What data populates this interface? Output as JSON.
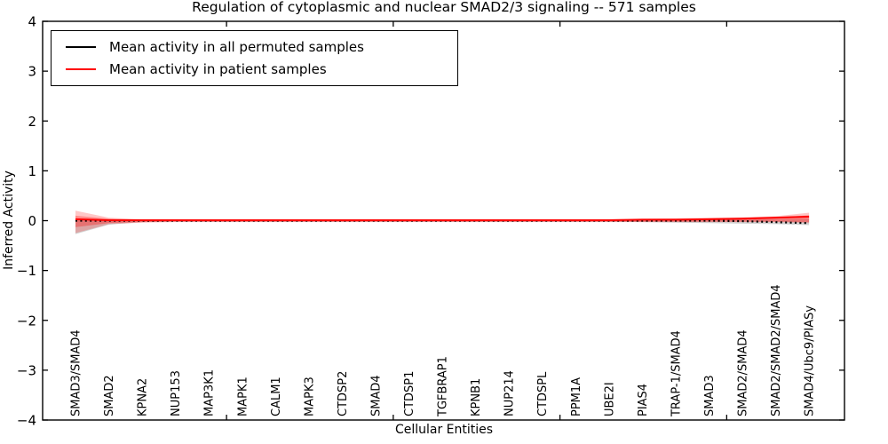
{
  "chart_data": {
    "type": "line",
    "title": "Regulation of cytoplasmic and nuclear SMAD2/3 signaling -- 571 samples",
    "xlabel": "Cellular Entities",
    "ylabel": "Inferred Activity",
    "ylim": [
      -4,
      4
    ],
    "yticks": [
      4,
      3,
      2,
      1,
      0,
      -1,
      -2,
      -3,
      -4
    ],
    "grid": false,
    "legend_position": "upper left",
    "categories": [
      "SMAD3/SMAD4",
      "SMAD2",
      "KPNA2",
      "NUP153",
      "MAP3K1",
      "MAPK1",
      "CALM1",
      "MAPK3",
      "CTDSP2",
      "SMAD4",
      "CTDSP1",
      "TGFBRAP1",
      "KPNB1",
      "NUP214",
      "CTDSPL",
      "PPM1A",
      "UBE2I",
      "PIAS4",
      "TRAP-1/SMAD4",
      "SMAD3",
      "SMAD2/SMAD4",
      "SMAD2/SMAD2/SMAD4",
      "SMAD4/Ubc9/PIASy"
    ],
    "series": [
      {
        "name": "Mean activity in all permuted samples",
        "color": "#000000",
        "linestyle": "dotted",
        "values": [
          0,
          0,
          0,
          0,
          0,
          0,
          0,
          0,
          0,
          0,
          0,
          0,
          0,
          0,
          0,
          0,
          0,
          0,
          0,
          0,
          -0.01,
          -0.03,
          -0.05
        ]
      },
      {
        "name": "Mean activity in patient samples",
        "color": "#ff0000",
        "linestyle": "solid",
        "values": [
          0.03,
          0.01,
          0.01,
          0.01,
          0.01,
          0.01,
          0.01,
          0.01,
          0.01,
          0.01,
          0.01,
          0.01,
          0.01,
          0.01,
          0.01,
          0.01,
          0.01,
          0.02,
          0.02,
          0.03,
          0.04,
          0.06,
          0.08
        ]
      }
    ],
    "bands": [
      {
        "name": "permuted-std-band",
        "color": "#8a8a8a",
        "opacity": 0.38,
        "upper": [
          0.03,
          0.02,
          0.02,
          0.02,
          0.02,
          0.02,
          0.02,
          0.02,
          0.02,
          0.02,
          0.02,
          0.02,
          0.02,
          0.02,
          0.02,
          0.02,
          0.02,
          0.02,
          0.02,
          0.02,
          0.02,
          0.03,
          0.04
        ],
        "lower": [
          -0.27,
          -0.08,
          -0.03,
          -0.02,
          -0.02,
          -0.02,
          -0.02,
          -0.02,
          -0.02,
          -0.02,
          -0.02,
          -0.02,
          -0.02,
          -0.02,
          -0.02,
          -0.02,
          -0.02,
          -0.03,
          -0.04,
          -0.05,
          -0.06,
          -0.07,
          -0.09
        ]
      },
      {
        "name": "patient-std-band-outer",
        "color": "#ff0000",
        "opacity": 0.22,
        "upper": [
          0.2,
          0.06,
          0.03,
          0.03,
          0.03,
          0.03,
          0.03,
          0.03,
          0.03,
          0.03,
          0.03,
          0.03,
          0.03,
          0.03,
          0.03,
          0.03,
          0.03,
          0.04,
          0.05,
          0.06,
          0.07,
          0.09,
          0.16
        ],
        "lower": [
          -0.25,
          -0.07,
          -0.04,
          -0.03,
          -0.03,
          -0.03,
          -0.03,
          -0.03,
          -0.03,
          -0.03,
          -0.03,
          -0.03,
          -0.03,
          -0.03,
          -0.03,
          -0.03,
          -0.03,
          -0.03,
          -0.03,
          -0.03,
          -0.03,
          -0.03,
          -0.05
        ]
      },
      {
        "name": "patient-std-band-inner",
        "color": "#ff0000",
        "opacity": 0.3,
        "upper": [
          0.1,
          0.04,
          0.02,
          0.02,
          0.02,
          0.02,
          0.02,
          0.02,
          0.02,
          0.02,
          0.02,
          0.02,
          0.02,
          0.02,
          0.02,
          0.02,
          0.02,
          0.03,
          0.03,
          0.04,
          0.05,
          0.06,
          0.11
        ],
        "lower": [
          -0.13,
          -0.05,
          -0.03,
          -0.02,
          -0.02,
          -0.02,
          -0.02,
          -0.02,
          -0.02,
          -0.02,
          -0.02,
          -0.02,
          -0.02,
          -0.02,
          -0.02,
          -0.02,
          -0.02,
          -0.02,
          -0.02,
          -0.02,
          -0.02,
          -0.02,
          -0.03
        ]
      }
    ]
  }
}
